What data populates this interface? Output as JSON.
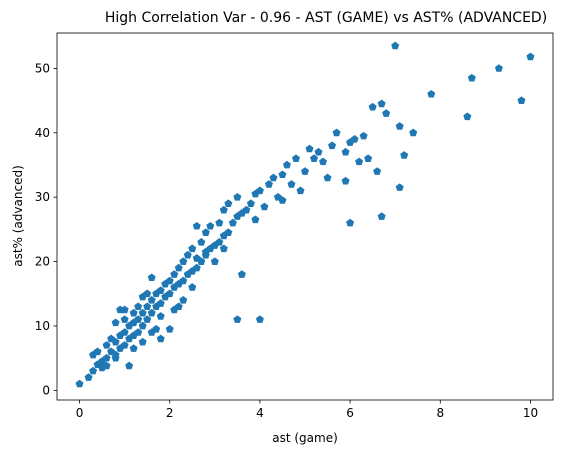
{
  "chart_data": {
    "type": "scatter",
    "title": "High Correlation Var - 0.96 - AST (GAME) vs AST% (ADVANCED)",
    "xlabel": "ast (game)",
    "ylabel": "ast% (advanced)",
    "xlim": [
      -0.5,
      10.5
    ],
    "ylim": [
      -1.5,
      55.5
    ],
    "xticks": [
      0,
      2,
      4,
      6,
      8,
      10
    ],
    "yticks": [
      0,
      10,
      20,
      30,
      40,
      50
    ],
    "grid": false,
    "marker": "pentagon",
    "color": "#1f77b4",
    "series": [
      {
        "x": [
          0.0,
          0.2,
          0.3,
          0.3,
          0.4,
          0.4,
          0.5,
          0.5,
          0.6,
          0.6,
          0.6,
          0.7,
          0.7,
          0.8,
          0.8,
          0.8,
          0.9,
          0.9,
          0.9,
          1.0,
          1.0,
          1.0,
          1.1,
          1.1,
          1.1,
          1.2,
          1.2,
          1.2,
          1.3,
          1.3,
          1.3,
          1.4,
          1.4,
          1.4,
          1.5,
          1.5,
          1.5,
          1.6,
          1.6,
          1.6,
          1.7,
          1.7,
          1.7,
          1.8,
          1.8,
          1.8,
          1.9,
          1.9,
          2.0,
          2.0,
          2.0,
          2.1,
          2.1,
          2.2,
          2.2,
          2.2,
          2.3,
          2.3,
          2.4,
          2.4,
          2.5,
          2.5,
          2.6,
          2.6,
          2.7,
          2.7,
          2.8,
          2.8,
          2.9,
          2.9,
          3.0,
          3.0,
          3.1,
          3.1,
          3.2,
          3.2,
          3.3,
          3.3,
          3.4,
          3.5,
          3.5,
          3.6,
          3.7,
          3.8,
          3.9,
          4.0,
          4.1,
          4.2,
          4.3,
          4.4,
          4.5,
          4.6,
          4.7,
          4.8,
          5.0,
          5.1,
          5.2,
          5.4,
          5.6,
          5.7,
          5.9,
          6.0,
          6.1,
          6.3,
          6.4,
          6.5,
          6.7,
          6.8,
          7.0,
          7.1,
          7.2,
          7.4,
          7.8,
          8.6,
          8.7,
          9.3,
          9.8,
          10.0,
          1.0,
          2.6,
          3.5,
          4.0,
          5.3,
          6.0,
          6.7,
          1.8,
          2.3,
          2.8,
          1.4,
          3.6,
          4.9,
          5.9,
          6.6,
          7.1,
          0.8,
          1.2,
          1.6,
          2.1,
          2.5,
          3.2,
          3.9,
          4.5,
          5.5,
          6.2
        ],
        "y": [
          1.0,
          2.0,
          3.0,
          5.5,
          4.0,
          6.0,
          4.5,
          3.5,
          5.0,
          7.0,
          3.8,
          6.0,
          8.0,
          5.5,
          7.5,
          10.5,
          6.5,
          8.5,
          12.5,
          7.0,
          9.0,
          11.0,
          8.0,
          10.0,
          3.8,
          8.5,
          10.5,
          12.0,
          9.0,
          11.0,
          13.0,
          10.0,
          12.0,
          14.5,
          11.0,
          13.0,
          15.0,
          12.0,
          14.0,
          17.5,
          13.0,
          15.0,
          9.5,
          13.5,
          15.5,
          11.5,
          14.5,
          16.5,
          15.0,
          17.0,
          9.5,
          16.0,
          18.0,
          16.5,
          19.0,
          13.0,
          17.0,
          20.0,
          18.0,
          21.0,
          18.5,
          22.0,
          19.0,
          20.5,
          20.0,
          23.0,
          21.0,
          24.5,
          22.0,
          25.5,
          22.5,
          20.0,
          23.0,
          26.0,
          24.0,
          28.0,
          24.5,
          29.0,
          26.0,
          27.0,
          30.0,
          27.5,
          28.0,
          29.0,
          30.5,
          31.0,
          28.5,
          32.0,
          33.0,
          30.0,
          33.5,
          35.0,
          32.0,
          36.0,
          34.0,
          37.5,
          36.0,
          35.5,
          38.0,
          40.0,
          37.0,
          38.5,
          39.0,
          39.5,
          36.0,
          44.0,
          44.5,
          43.0,
          53.5,
          41.0,
          36.5,
          40.0,
          46.0,
          42.5,
          48.5,
          50.0,
          45.0,
          51.8,
          12.5,
          25.5,
          11.0,
          11.0,
          37.0,
          26.0,
          27.0,
          8.0,
          14.0,
          21.5,
          7.5,
          18.0,
          31.0,
          32.5,
          34.0,
          31.5,
          5.0,
          6.5,
          9.0,
          12.5,
          16.0,
          22.0,
          26.5,
          29.5,
          33.0,
          35.5
        ]
      }
    ]
  }
}
